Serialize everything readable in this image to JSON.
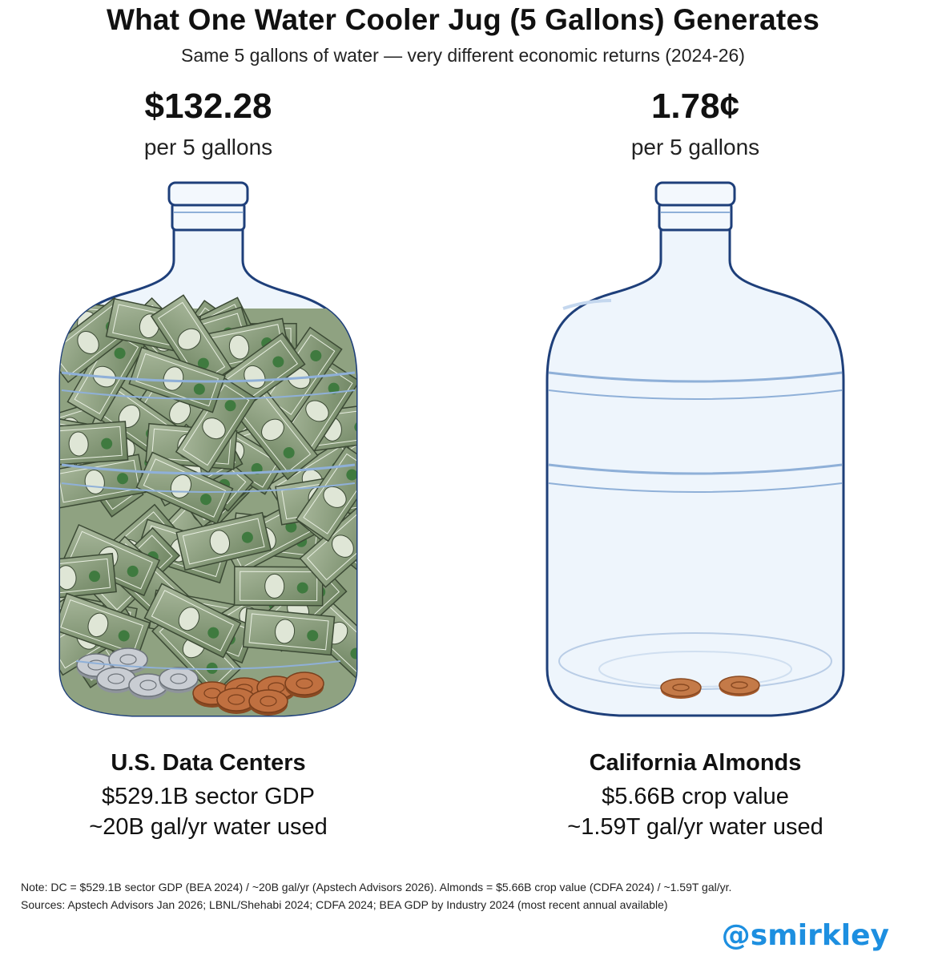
{
  "title": "What One Water Cooler Jug (5 Gallons) Generates",
  "subtitle": "Same 5 gallons of water — very different economic returns (2024-26)",
  "left": {
    "value": "$132.28",
    "unit": "per 5 gallons",
    "name": "U.S. Data Centers",
    "line1": "$529.1B sector GDP",
    "line2": "~20B gal/yr water used",
    "jug_contents": "dollar bills and coins"
  },
  "right": {
    "value": "1.78¢",
    "unit": "per 5 gallons",
    "name": "California Almonds",
    "line1": "$5.66B crop value",
    "line2": "~1.59T gal/yr water used",
    "jug_contents": "two pennies"
  },
  "note": {
    "line1": "Note: DC = $529.1B sector GDP (BEA 2024) / ~20B gal/yr (Apstech Advisors 2026). Almonds = $5.66B crop value (CDFA 2024) / ~1.59T gal/yr.",
    "line2": "Sources: Apstech Advisors Jan 2026; LBNL/Shehabi 2024; CDFA 2024; BEA GDP by Industry 2024 (most recent annual available)"
  },
  "handle": "@smirkley",
  "colors": {
    "jug_outline": "#1e3f7a",
    "jug_fill": "#eef5fc",
    "money_green": "#7d9470",
    "copper": "#b8683a",
    "silver": "#c9cdd3",
    "handle": "#1d8fe0"
  }
}
